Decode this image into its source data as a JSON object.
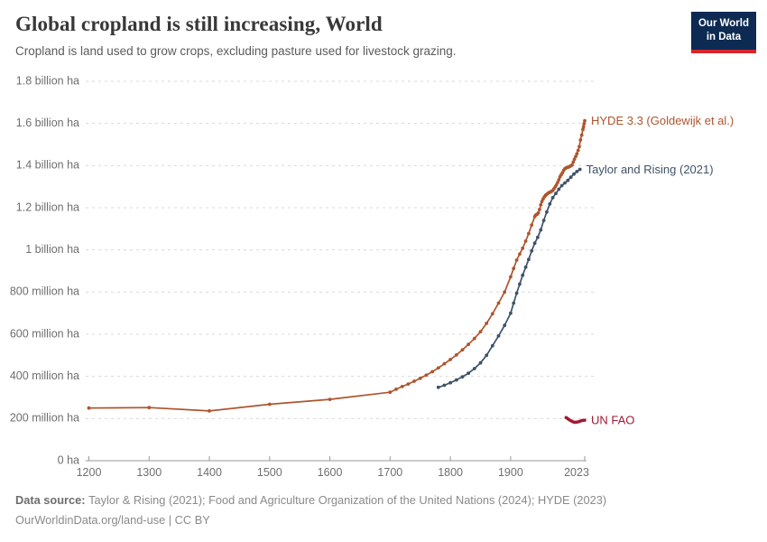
{
  "header": {
    "title": "Global cropland is still increasing, World",
    "subtitle": "Cropland is land used to grow crops, excluding pasture used for livestock grazing.",
    "logo": {
      "line1": "Our World",
      "line2": "in Data"
    }
  },
  "footer": {
    "source_label": "Data source: ",
    "source_value": "Taylor & Rising (2021); Food and Agriculture Organization of the United Nations (2024); HYDE (2023)",
    "permalink": "OurWorldinData.org/land-use",
    "license": " | CC BY"
  },
  "colors": {
    "hyde": "#ae552e",
    "taylor": "#3e5268",
    "fao": "#a01a33",
    "grid": "#dadada",
    "axis": "#9a9a9a",
    "tick_text": "#6e6e6e",
    "logo_bg": "#0c2a52",
    "logo_bar": "#d6262b"
  },
  "chart_data": {
    "type": "line",
    "title": "Global cropland is still increasing, World",
    "xlabel": "",
    "ylabel": "",
    "units": "million hectares",
    "xlim": [
      1200,
      2023
    ],
    "ylim": [
      0,
      1800
    ],
    "grid": "horizontal-dashed",
    "legend_position": "end-of-line-labels",
    "x_ticks": [
      {
        "value": 1200,
        "label": "1200"
      },
      {
        "value": 1300,
        "label": "1300"
      },
      {
        "value": 1400,
        "label": "1400"
      },
      {
        "value": 1500,
        "label": "1500"
      },
      {
        "value": 1600,
        "label": "1600"
      },
      {
        "value": 1700,
        "label": "1700"
      },
      {
        "value": 1800,
        "label": "1800"
      },
      {
        "value": 1900,
        "label": "1900"
      },
      {
        "value": 2023,
        "label": "2023"
      }
    ],
    "y_ticks": [
      {
        "value": 0,
        "label": "0 ha"
      },
      {
        "value": 200,
        "label": "200 million ha"
      },
      {
        "value": 400,
        "label": "400 million ha"
      },
      {
        "value": 600,
        "label": "600 million ha"
      },
      {
        "value": 800,
        "label": "800 million ha"
      },
      {
        "value": 1000,
        "label": "1 billion ha"
      },
      {
        "value": 1200,
        "label": "1.2 billion ha"
      },
      {
        "value": 1400,
        "label": "1.4 billion ha"
      },
      {
        "value": 1600,
        "label": "1.6 billion ha"
      },
      {
        "value": 1800,
        "label": "1.8 billion ha"
      }
    ],
    "series": [
      {
        "name": "HYDE 3.3 (Goldewijk et al.)",
        "color": "#ae552e",
        "markers": true,
        "line_width": 1.7,
        "points": [
          [
            1200,
            250
          ],
          [
            1300,
            252
          ],
          [
            1400,
            236
          ],
          [
            1500,
            268
          ],
          [
            1600,
            291
          ],
          [
            1700,
            325
          ],
          [
            1710,
            339
          ],
          [
            1720,
            352
          ],
          [
            1730,
            364
          ],
          [
            1740,
            377
          ],
          [
            1750,
            391
          ],
          [
            1760,
            406
          ],
          [
            1770,
            422
          ],
          [
            1780,
            440
          ],
          [
            1790,
            460
          ],
          [
            1800,
            480
          ],
          [
            1810,
            502
          ],
          [
            1820,
            526
          ],
          [
            1830,
            552
          ],
          [
            1840,
            580
          ],
          [
            1850,
            612
          ],
          [
            1860,
            652
          ],
          [
            1870,
            697
          ],
          [
            1880,
            748
          ],
          [
            1890,
            800
          ],
          [
            1900,
            872
          ],
          [
            1905,
            912
          ],
          [
            1910,
            952
          ],
          [
            1915,
            980
          ],
          [
            1920,
            1008
          ],
          [
            1925,
            1042
          ],
          [
            1930,
            1078
          ],
          [
            1935,
            1118
          ],
          [
            1940,
            1158
          ],
          [
            1942,
            1166
          ],
          [
            1944,
            1169
          ],
          [
            1946,
            1176
          ],
          [
            1948,
            1192
          ],
          [
            1950,
            1214
          ],
          [
            1952,
            1230
          ],
          [
            1954,
            1242
          ],
          [
            1956,
            1252
          ],
          [
            1958,
            1259
          ],
          [
            1960,
            1264
          ],
          [
            1962,
            1269
          ],
          [
            1964,
            1272
          ],
          [
            1966,
            1275
          ],
          [
            1968,
            1278
          ],
          [
            1970,
            1282
          ],
          [
            1972,
            1290
          ],
          [
            1974,
            1299
          ],
          [
            1976,
            1308
          ],
          [
            1978,
            1320
          ],
          [
            1980,
            1333
          ],
          [
            1982,
            1347
          ],
          [
            1984,
            1357
          ],
          [
            1986,
            1366
          ],
          [
            1988,
            1377
          ],
          [
            1990,
            1385
          ],
          [
            1992,
            1389
          ],
          [
            1994,
            1391
          ],
          [
            1996,
            1393
          ],
          [
            1998,
            1396
          ],
          [
            2000,
            1399
          ],
          [
            2002,
            1403
          ],
          [
            2004,
            1417
          ],
          [
            2006,
            1430
          ],
          [
            2008,
            1443
          ],
          [
            2010,
            1456
          ],
          [
            2012,
            1472
          ],
          [
            2014,
            1490
          ],
          [
            2016,
            1522
          ],
          [
            2018,
            1545
          ],
          [
            2020,
            1572
          ],
          [
            2021,
            1585
          ],
          [
            2022,
            1599
          ],
          [
            2023,
            1613
          ]
        ]
      },
      {
        "name": "Taylor and Rising (2021)",
        "color": "#3e5268",
        "markers": true,
        "line_width": 1.7,
        "points": [
          [
            1780,
            348
          ],
          [
            1790,
            358
          ],
          [
            1800,
            370
          ],
          [
            1810,
            383
          ],
          [
            1820,
            398
          ],
          [
            1830,
            415
          ],
          [
            1840,
            437
          ],
          [
            1850,
            464
          ],
          [
            1860,
            500
          ],
          [
            1870,
            545
          ],
          [
            1880,
            592
          ],
          [
            1890,
            642
          ],
          [
            1900,
            700
          ],
          [
            1905,
            748
          ],
          [
            1910,
            795
          ],
          [
            1915,
            838
          ],
          [
            1920,
            880
          ],
          [
            1925,
            918
          ],
          [
            1930,
            955
          ],
          [
            1935,
            995
          ],
          [
            1940,
            1032
          ],
          [
            1945,
            1060
          ],
          [
            1950,
            1095
          ],
          [
            1955,
            1140
          ],
          [
            1960,
            1180
          ],
          [
            1965,
            1218
          ],
          [
            1970,
            1248
          ],
          [
            1975,
            1268
          ],
          [
            1980,
            1288
          ],
          [
            1985,
            1305
          ],
          [
            1990,
            1318
          ],
          [
            1995,
            1330
          ],
          [
            2000,
            1345
          ],
          [
            2005,
            1360
          ],
          [
            2010,
            1372
          ],
          [
            2015,
            1382
          ]
        ]
      },
      {
        "name": "UN FAO",
        "color": "#a01a33",
        "markers": false,
        "line_width": 3.5,
        "points": [
          [
            1992,
            205
          ],
          [
            1995,
            199
          ],
          [
            1998,
            193
          ],
          [
            2001,
            188
          ],
          [
            2004,
            184
          ],
          [
            2007,
            182
          ],
          [
            2010,
            183
          ],
          [
            2013,
            185
          ],
          [
            2016,
            188
          ],
          [
            2019,
            191
          ],
          [
            2023,
            192
          ]
        ]
      }
    ]
  }
}
